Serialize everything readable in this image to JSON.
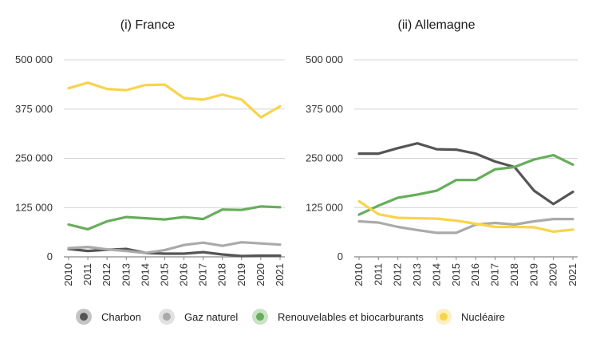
{
  "chart_data": [
    {
      "type": "line",
      "title": "(i) France",
      "x": [
        "2010",
        "2011",
        "2012",
        "2013",
        "2014",
        "2015",
        "2016",
        "2017",
        "2018",
        "2019",
        "2020",
        "2021"
      ],
      "yticks": [
        "0",
        "125 000",
        "250 000",
        "375 000",
        "500 000"
      ],
      "ylim": [
        0,
        500000
      ],
      "series": [
        {
          "name": "Charbon",
          "color": "#555555",
          "values": [
            20000,
            15000,
            18000,
            20000,
            10000,
            8000,
            8000,
            12000,
            6000,
            2000,
            3000,
            3000
          ]
        },
        {
          "name": "Gaz naturel",
          "color": "#aaaaaa",
          "values": [
            22000,
            25000,
            19000,
            15000,
            10000,
            17000,
            30000,
            36000,
            28000,
            37000,
            34000,
            31000
          ]
        },
        {
          "name": "Renouvelables et biocarburants",
          "color": "#67ad5b",
          "values": [
            82000,
            70000,
            90000,
            101000,
            98000,
            95000,
            101000,
            96000,
            120000,
            119000,
            128000,
            126000
          ]
        },
        {
          "name": "Nucléaire",
          "color": "#f7d44c",
          "values": [
            428000,
            442000,
            426000,
            423000,
            436000,
            437000,
            403000,
            399000,
            412000,
            399000,
            354000,
            382000
          ]
        }
      ]
    },
    {
      "type": "line",
      "title": "(ii) Allemagne",
      "x": [
        "2010",
        "2011",
        "2012",
        "2013",
        "2014",
        "2015",
        "2016",
        "2017",
        "2018",
        "2019",
        "2020",
        "2021"
      ],
      "yticks": [
        "0",
        "125 000",
        "250 000",
        "375 000",
        "500 000"
      ],
      "ylim": [
        0,
        500000
      ],
      "series": [
        {
          "name": "Charbon",
          "color": "#555555",
          "values": [
            262000,
            262000,
            276000,
            288000,
            273000,
            272000,
            262000,
            242000,
            228000,
            168000,
            134000,
            165000
          ]
        },
        {
          "name": "Gaz naturel",
          "color": "#aaaaaa",
          "values": [
            90000,
            87000,
            76000,
            68000,
            61000,
            61000,
            82000,
            86000,
            82000,
            90000,
            96000,
            96000
          ]
        },
        {
          "name": "Renouvelables et biocarburants",
          "color": "#67ad5b",
          "values": [
            107000,
            130000,
            150000,
            158000,
            168000,
            195000,
            195000,
            222000,
            228000,
            247000,
            258000,
            234000
          ]
        },
        {
          "name": "Nucléaire",
          "color": "#f7d44c",
          "values": [
            141000,
            108000,
            99000,
            98000,
            97000,
            92000,
            84000,
            76000,
            76000,
            75000,
            64000,
            69000
          ]
        }
      ]
    }
  ],
  "legend": [
    {
      "label": "Charbon",
      "color": "#555555"
    },
    {
      "label": "Gaz naturel",
      "color": "#aaaaaa"
    },
    {
      "label": "Renouvelables et biocarburants",
      "color": "#67ad5b"
    },
    {
      "label": "Nucléaire",
      "color": "#f7d44c"
    }
  ]
}
